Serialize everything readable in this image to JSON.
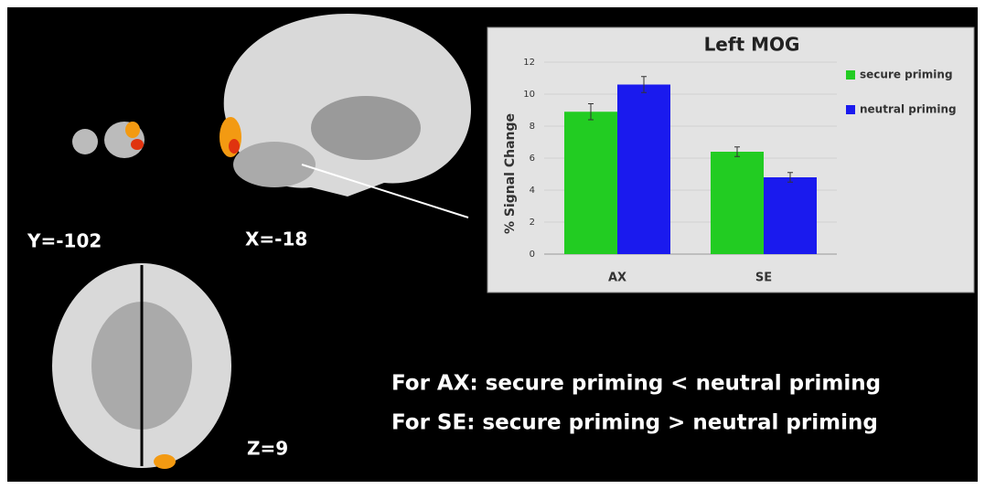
{
  "chart_data": {
    "type": "bar",
    "title": "Left MOG",
    "y_label": "% Signal Change",
    "categories": [
      "AX",
      "SE"
    ],
    "series": [
      {
        "name": "secure priming",
        "color": "#22cc22",
        "values": [
          8.9,
          6.4
        ],
        "errors": [
          0.5,
          0.3
        ]
      },
      {
        "name": "neutral priming",
        "color": "#1a1aee",
        "values": [
          10.6,
          4.8
        ],
        "errors": [
          0.5,
          0.3
        ]
      }
    ],
    "ylim": [
      0,
      12
    ],
    "yticks": [
      0,
      2,
      4,
      6,
      8,
      10,
      12
    ],
    "grid": true,
    "legend": "right"
  },
  "panel_labels": [
    "Y=-102",
    "X=-18",
    "Z=9"
  ],
  "conclusions": [
    "For AX: secure priming < neutral priming",
    "For SE: secure priming > neutral priming"
  ]
}
